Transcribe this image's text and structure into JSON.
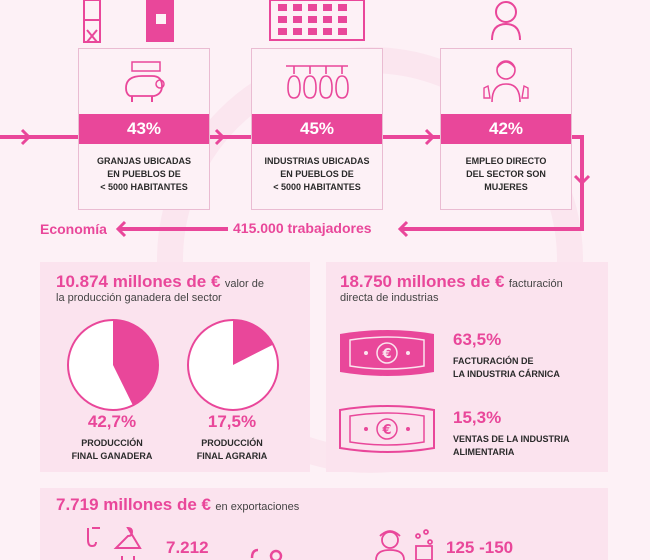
{
  "stats": [
    {
      "percent": "43%",
      "label": "GRANJAS UBICADAS\nEN PUEBLOS DE\n< 5000 HABITANTES",
      "icon": "pig-icon"
    },
    {
      "percent": "45%",
      "label": "INDUSTRIAS UBICADAS\nEN PUEBLOS DE\n< 5000 HABITANTES",
      "icon": "hanging-meat-icon"
    },
    {
      "percent": "42%",
      "label": "EMPLEO DIRECTO\nDEL SECTOR SON\nMUJERES",
      "icon": "woman-icon"
    }
  ],
  "workers_label": "415.000 trabajadores",
  "section_title": "Economía",
  "production": {
    "amount": "10.874 millones de €",
    "desc_inline": "valor de",
    "desc_line2": "la producción ganadera del sector",
    "pies": [
      {
        "percent": "42,7%",
        "label": "PRODUCCIÓN\nFINAL GANADERA",
        "value": 42.7
      },
      {
        "percent": "17,5%",
        "label": "PRODUCCIÓN\nFINAL AGRARIA",
        "value": 17.5
      }
    ]
  },
  "billing": {
    "amount": "18.750 millones de €",
    "desc_inline": "facturación",
    "desc_line2": "directa de industrias",
    "items": [
      {
        "percent": "63,5%",
        "label": "FACTURACIÓN DE\nLA INDUSTRIA CÁRNICA",
        "icon": "euro-bill-icon"
      },
      {
        "percent": "15,3%",
        "label": "VENTAS DE LA INDUSTRIA\nALIMENTARIA",
        "icon": "euro-bill-icon"
      }
    ]
  },
  "exports": {
    "amount": "7.719 millones de €",
    "desc": "en exportaciones",
    "value_a": "7.212",
    "value_b": "125 -150"
  },
  "colors": {
    "accent": "#e9479a",
    "card": "#fbe3ee",
    "background": "#fdf1f6"
  }
}
